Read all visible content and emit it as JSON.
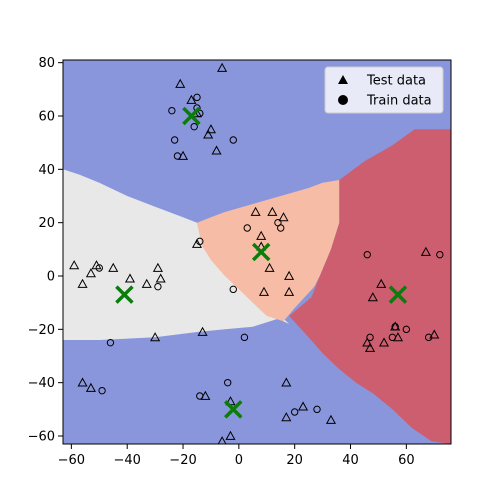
{
  "chart_data": {
    "type": "scatter",
    "title": "",
    "xlabel": "",
    "ylabel": "",
    "xlim": [
      -63,
      76
    ],
    "ylim": [
      -63,
      81
    ],
    "x_ticks": [
      -60,
      -40,
      -20,
      0,
      20,
      40,
      60
    ],
    "y_ticks": [
      -60,
      -40,
      -20,
      0,
      20,
      40,
      60,
      80
    ],
    "grid": false,
    "legend": {
      "position": "top-right",
      "entries": [
        "Test data",
        "Train data"
      ]
    },
    "colors": {
      "cluster_blue": "#8a96dc",
      "cluster_white": "#e8e8e8",
      "cluster_salmon": "#f7bca5",
      "cluster_red": "#cc5e70",
      "centroid": "#0b7d0b"
    },
    "regions": [
      {
        "name": "blue",
        "color": "#8a96dc",
        "polygon": [
          [
            -63,
            81
          ],
          [
            76,
            81
          ],
          [
            76,
            -63
          ],
          [
            -63,
            -63
          ]
        ]
      },
      {
        "name": "white",
        "color": "#e8e8e8",
        "polygon": [
          [
            -63,
            40
          ],
          [
            -57,
            38
          ],
          [
            -50,
            35
          ],
          [
            -40,
            30
          ],
          [
            -30,
            26
          ],
          [
            -20,
            22
          ],
          [
            -15,
            20
          ],
          [
            -13,
            17
          ],
          [
            -10,
            11
          ],
          [
            -6,
            6
          ],
          [
            0,
            0
          ],
          [
            8,
            -8
          ],
          [
            18,
            -18
          ],
          [
            14,
            -16
          ],
          [
            5,
            -19
          ],
          [
            -5,
            -20
          ],
          [
            -15,
            -21
          ],
          [
            -30,
            -23
          ],
          [
            -50,
            -24
          ],
          [
            -63,
            -24
          ]
        ]
      },
      {
        "name": "salmon",
        "color": "#f7bca5",
        "polygon": [
          [
            -15,
            20
          ],
          [
            -10,
            22
          ],
          [
            -5,
            24
          ],
          [
            5,
            27
          ],
          [
            15,
            30
          ],
          [
            25,
            33
          ],
          [
            30,
            35
          ],
          [
            36,
            36
          ],
          [
            36,
            20
          ],
          [
            33,
            10
          ],
          [
            29,
            0
          ],
          [
            27,
            -4
          ],
          [
            20,
            -12
          ],
          [
            16,
            -17
          ],
          [
            10,
            -15
          ],
          [
            5,
            -10
          ],
          [
            0,
            -5
          ],
          [
            -5,
            0
          ],
          [
            -10,
            6
          ],
          [
            -13,
            11
          ],
          [
            -14,
            15
          ]
        ]
      },
      {
        "name": "red",
        "color": "#cc5e70",
        "polygon": [
          [
            36,
            36
          ],
          [
            45,
            43
          ],
          [
            55,
            49
          ],
          [
            63,
            55
          ],
          [
            76,
            55
          ],
          [
            76,
            -63
          ],
          [
            69,
            -62
          ],
          [
            62,
            -57
          ],
          [
            55,
            -50
          ],
          [
            48,
            -44
          ],
          [
            42,
            -40
          ],
          [
            36,
            -35
          ],
          [
            30,
            -29
          ],
          [
            25,
            -23
          ],
          [
            18,
            -15
          ],
          [
            26,
            -8
          ],
          [
            29,
            0
          ],
          [
            33,
            10
          ],
          [
            36,
            20
          ]
        ]
      }
    ],
    "series": [
      {
        "name": "Test data",
        "marker": "triangle",
        "points": [
          [
            -21,
            72
          ],
          [
            -17,
            66
          ],
          [
            -15,
            61
          ],
          [
            -6,
            78
          ],
          [
            -10,
            55
          ],
          [
            -11,
            53
          ],
          [
            -8,
            47
          ],
          [
            -20,
            45
          ],
          [
            6,
            24
          ],
          [
            12,
            24
          ],
          [
            8,
            15
          ],
          [
            16,
            22
          ],
          [
            -15,
            12
          ],
          [
            8,
            11
          ],
          [
            11,
            3
          ],
          [
            18,
            0
          ],
          [
            9,
            -6
          ],
          [
            18,
            -6
          ],
          [
            -59,
            4
          ],
          [
            -56,
            -3
          ],
          [
            -53,
            1
          ],
          [
            -51,
            4
          ],
          [
            -45,
            3
          ],
          [
            -39,
            -1
          ],
          [
            -33,
            -3
          ],
          [
            -29,
            3
          ],
          [
            -28,
            -1
          ],
          [
            -30,
            -23
          ],
          [
            -13,
            -21
          ],
          [
            -56,
            -40
          ],
          [
            -53,
            -42
          ],
          [
            -12,
            -45
          ],
          [
            -3,
            -47
          ],
          [
            -3,
            -60
          ],
          [
            -6,
            -62
          ],
          [
            17,
            -40
          ],
          [
            17,
            -53
          ],
          [
            23,
            -49
          ],
          [
            33,
            -54
          ],
          [
            46,
            -25
          ],
          [
            47,
            -27
          ],
          [
            48,
            -8
          ],
          [
            51,
            -3
          ],
          [
            52,
            -25
          ],
          [
            56,
            -19
          ],
          [
            57,
            -23
          ],
          [
            67,
            9
          ],
          [
            70,
            -22
          ]
        ]
      },
      {
        "name": "Train data",
        "marker": "circle",
        "points": [
          [
            -24,
            62
          ],
          [
            -15,
            67
          ],
          [
            -15,
            63
          ],
          [
            -14,
            61
          ],
          [
            -16,
            56
          ],
          [
            -23,
            51
          ],
          [
            -22,
            45
          ],
          [
            -2,
            51
          ],
          [
            -2,
            -5
          ],
          [
            -4,
            -40
          ],
          [
            -14,
            13
          ],
          [
            3,
            18
          ],
          [
            14,
            20
          ],
          [
            15,
            18
          ],
          [
            -50,
            3
          ],
          [
            -49,
            -43
          ],
          [
            -46,
            -25
          ],
          [
            -29,
            -4
          ],
          [
            -14,
            -45
          ],
          [
            2,
            -23
          ],
          [
            20,
            -51
          ],
          [
            28,
            -50
          ],
          [
            46,
            8
          ],
          [
            47,
            -23
          ],
          [
            55,
            -23
          ],
          [
            56,
            -19
          ],
          [
            60,
            -20
          ],
          [
            68,
            -23
          ],
          [
            72,
            8
          ]
        ]
      },
      {
        "name": "centroids",
        "marker": "x",
        "points": [
          [
            -17,
            60
          ],
          [
            -41,
            -7
          ],
          [
            8,
            9
          ],
          [
            -2,
            -50
          ],
          [
            57,
            -7
          ]
        ]
      }
    ]
  }
}
